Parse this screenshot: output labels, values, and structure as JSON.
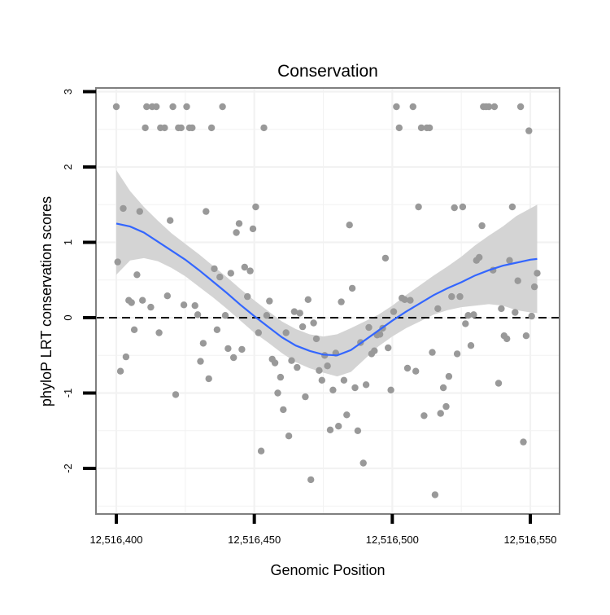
{
  "chart_data": {
    "type": "scatter",
    "title": "Conservation",
    "xlabel": "Genomic Position",
    "ylabel": "phyloP LRT conservation scores",
    "xlim": [
      12516394,
      12516555
    ],
    "ylim": [
      -2.65,
      3.1
    ],
    "x_ticks": [
      12516400,
      12516450,
      12516500,
      12516550
    ],
    "x_tick_labels": [
      "12,516,400",
      "12,516,450",
      "12,516,500",
      "12,516,550"
    ],
    "y_ticks": [
      -2,
      -1,
      0,
      1,
      2,
      3
    ],
    "y_tick_labels": [
      "-2",
      "-1",
      "0",
      "1",
      "2",
      "3"
    ],
    "grid": true,
    "reference_line": {
      "y": 0,
      "style": "dashed"
    },
    "colors": {
      "points": "#999999",
      "smooth": "#3366ff",
      "band": "#d4d4d4",
      "panel_border": "#7f7f7f",
      "grid": "#f2f2f2"
    },
    "series": [
      {
        "type": "scatter",
        "points": [
          [
            12516400,
            2.8
          ],
          [
            12516400.5,
            0.74
          ],
          [
            12516401.5,
            -0.71
          ],
          [
            12516402.5,
            1.45
          ],
          [
            12516403.5,
            -0.52
          ],
          [
            12516404.5,
            0.23
          ],
          [
            12516405.5,
            0.2
          ],
          [
            12516406.5,
            -0.16
          ],
          [
            12516407.5,
            0.57
          ],
          [
            12516408.5,
            1.41
          ],
          [
            12516409.5,
            0.23
          ],
          [
            12516410.5,
            2.52
          ],
          [
            12516411,
            2.8
          ],
          [
            12516412.5,
            0.14
          ],
          [
            12516413,
            2.8
          ],
          [
            12516414.5,
            2.8
          ],
          [
            12516415.5,
            -0.2
          ],
          [
            12516416,
            2.52
          ],
          [
            12516417.5,
            2.52
          ],
          [
            12516418.5,
            0.29
          ],
          [
            12516419.5,
            1.29
          ],
          [
            12516420.5,
            2.8
          ],
          [
            12516421.5,
            -1.02
          ],
          [
            12516422.5,
            2.52
          ],
          [
            12516423.5,
            2.52
          ],
          [
            12516424.5,
            0.17
          ],
          [
            12516425.5,
            2.8
          ],
          [
            12516426.5,
            2.52
          ],
          [
            12516427.5,
            2.52
          ],
          [
            12516428.5,
            0.16
          ],
          [
            12516429.5,
            0.04
          ],
          [
            12516430.5,
            -0.58
          ],
          [
            12516431.5,
            -0.34
          ],
          [
            12516432.5,
            1.41
          ],
          [
            12516433.5,
            -0.81
          ],
          [
            12516434.5,
            2.52
          ],
          [
            12516435.5,
            0.65
          ],
          [
            12516436.5,
            -0.16
          ],
          [
            12516437.5,
            0.54
          ],
          [
            12516438.5,
            2.8
          ],
          [
            12516439.5,
            0.03
          ],
          [
            12516440.5,
            -0.41
          ],
          [
            12516441.5,
            0.59
          ],
          [
            12516442.5,
            -0.53
          ],
          [
            12516443.5,
            1.13
          ],
          [
            12516444.5,
            1.25
          ],
          [
            12516445.5,
            -0.42
          ],
          [
            12516446.5,
            0.67
          ],
          [
            12516447.5,
            0.28
          ],
          [
            12516448.5,
            0.62
          ],
          [
            12516449.5,
            1.18
          ],
          [
            12516450.5,
            1.47
          ],
          [
            12516451.5,
            -0.2
          ],
          [
            12516452.5,
            -1.77
          ],
          [
            12516453.5,
            2.52
          ],
          [
            12516454.5,
            0.03
          ],
          [
            12516455.5,
            0.22
          ],
          [
            12516456.5,
            -0.55
          ],
          [
            12516457.5,
            -0.6
          ],
          [
            12516458.5,
            -1.0
          ],
          [
            12516459.5,
            -0.79
          ],
          [
            12516460.5,
            -1.22
          ],
          [
            12516461.5,
            -0.2
          ],
          [
            12516462.5,
            -1.57
          ],
          [
            12516463.5,
            -0.57
          ],
          [
            12516464.5,
            0.08
          ],
          [
            12516465.5,
            -0.66
          ],
          [
            12516466.5,
            0.06
          ],
          [
            12516467.5,
            -0.12
          ],
          [
            12516468.5,
            -1.05
          ],
          [
            12516469.5,
            0.24
          ],
          [
            12516470.5,
            -2.15
          ],
          [
            12516471.5,
            -0.07
          ],
          [
            12516472.5,
            -0.28
          ],
          [
            12516473.5,
            -0.7
          ],
          [
            12516474.5,
            -0.83
          ],
          [
            12516475.5,
            -0.5
          ],
          [
            12516476.5,
            -0.64
          ],
          [
            12516477.5,
            -1.49
          ],
          [
            12516478.5,
            -0.96
          ],
          [
            12516479.5,
            -0.47
          ],
          [
            12516480.5,
            -1.44
          ],
          [
            12516481.5,
            0.21
          ],
          [
            12516482.5,
            -0.83
          ],
          [
            12516483.5,
            -1.29
          ],
          [
            12516484.5,
            1.23
          ],
          [
            12516485.5,
            0.39
          ],
          [
            12516486.5,
            -0.93
          ],
          [
            12516487.5,
            -1.5
          ],
          [
            12516488.5,
            -0.33
          ],
          [
            12516489.5,
            -1.93
          ],
          [
            12516490.5,
            -0.89
          ],
          [
            12516491.5,
            -0.13
          ],
          [
            12516492.5,
            -0.48
          ],
          [
            12516493.5,
            -0.44
          ],
          [
            12516494.5,
            -0.23
          ],
          [
            12516495.5,
            -0.22
          ],
          [
            12516496.5,
            -0.14
          ],
          [
            12516497.5,
            0.79
          ],
          [
            12516498.5,
            -0.4
          ],
          [
            12516499.5,
            -0.96
          ],
          [
            12516500.5,
            0.08
          ],
          [
            12516501.5,
            2.8
          ],
          [
            12516502.5,
            2.52
          ],
          [
            12516503.5,
            0.26
          ],
          [
            12516504.5,
            0.24
          ],
          [
            12516505.5,
            -0.67
          ],
          [
            12516506.5,
            0.23
          ],
          [
            12516507.5,
            2.8
          ],
          [
            12516508.5,
            -0.71
          ],
          [
            12516509.5,
            1.47
          ],
          [
            12516510.5,
            2.52
          ],
          [
            12516511.5,
            -1.3
          ],
          [
            12516512.5,
            2.52
          ],
          [
            12516513.5,
            2.52
          ],
          [
            12516514.5,
            -0.46
          ],
          [
            12516515.5,
            -2.35
          ],
          [
            12516516.5,
            0.12
          ],
          [
            12516517.5,
            -1.27
          ],
          [
            12516518.5,
            -0.93
          ],
          [
            12516519.5,
            -1.18
          ],
          [
            12516520.5,
            -0.78
          ],
          [
            12516521.5,
            0.28
          ],
          [
            12516522.5,
            1.46
          ],
          [
            12516523.5,
            -0.48
          ],
          [
            12516524.5,
            0.28
          ],
          [
            12516525.5,
            1.47
          ],
          [
            12516526.5,
            -0.08
          ],
          [
            12516527.5,
            0.03
          ],
          [
            12516528.5,
            -0.37
          ],
          [
            12516529.5,
            0.04
          ],
          [
            12516530.5,
            0.76
          ],
          [
            12516531.5,
            0.8
          ],
          [
            12516532.5,
            1.22
          ],
          [
            12516533,
            2.8
          ],
          [
            12516534,
            2.8
          ],
          [
            12516535,
            2.8
          ],
          [
            12516536.5,
            0.63
          ],
          [
            12516537,
            2.8
          ],
          [
            12516538.5,
            -0.87
          ],
          [
            12516539.5,
            0.12
          ],
          [
            12516540.5,
            -0.24
          ],
          [
            12516541.5,
            -0.28
          ],
          [
            12516542.5,
            0.76
          ],
          [
            12516543.5,
            1.47
          ],
          [
            12516544.5,
            0.07
          ],
          [
            12516545.5,
            0.49
          ],
          [
            12516546.5,
            2.8
          ],
          [
            12516547.5,
            -1.65
          ],
          [
            12516548.5,
            -0.24
          ],
          [
            12516549.5,
            2.48
          ],
          [
            12516550.5,
            0.02
          ],
          [
            12516551.5,
            0.41
          ],
          [
            12516552.5,
            0.59
          ]
        ]
      },
      {
        "type": "line",
        "curve": [
          [
            12516400,
            1.25
          ],
          [
            12516405,
            1.21
          ],
          [
            12516410,
            1.13
          ],
          [
            12516415,
            1.01
          ],
          [
            12516420,
            0.89
          ],
          [
            12516425,
            0.77
          ],
          [
            12516430,
            0.63
          ],
          [
            12516435,
            0.48
          ],
          [
            12516440,
            0.33
          ],
          [
            12516445,
            0.17
          ],
          [
            12516450,
            0.02
          ],
          [
            12516455,
            -0.12
          ],
          [
            12516460,
            -0.26
          ],
          [
            12516465,
            -0.37
          ],
          [
            12516470,
            -0.44
          ],
          [
            12516475,
            -0.49
          ],
          [
            12516480,
            -0.5
          ],
          [
            12516485,
            -0.43
          ],
          [
            12516490,
            -0.3
          ],
          [
            12516495,
            -0.17
          ],
          [
            12516500,
            -0.04
          ],
          [
            12516505,
            0.08
          ],
          [
            12516510,
            0.19
          ],
          [
            12516515,
            0.3
          ],
          [
            12516520,
            0.39
          ],
          [
            12516525,
            0.47
          ],
          [
            12516530,
            0.56
          ],
          [
            12516535,
            0.63
          ],
          [
            12516540,
            0.69
          ],
          [
            12516545,
            0.73
          ],
          [
            12516550,
            0.77
          ],
          [
            12516552.5,
            0.78
          ]
        ],
        "band": [
          [
            12516400,
            0.57,
            1.96
          ],
          [
            12516405,
            0.76,
            1.68
          ],
          [
            12516410,
            0.79,
            1.47
          ],
          [
            12516415,
            0.75,
            1.29
          ],
          [
            12516420,
            0.66,
            1.12
          ],
          [
            12516425,
            0.55,
            0.98
          ],
          [
            12516430,
            0.41,
            0.84
          ],
          [
            12516435,
            0.27,
            0.69
          ],
          [
            12516440,
            0.12,
            0.54
          ],
          [
            12516445,
            -0.04,
            0.38
          ],
          [
            12516450,
            -0.2,
            0.23
          ],
          [
            12516455,
            -0.33,
            0.09
          ],
          [
            12516460,
            -0.47,
            -0.05
          ],
          [
            12516465,
            -0.59,
            -0.15
          ],
          [
            12516470,
            -0.67,
            -0.22
          ],
          [
            12516475,
            -0.73,
            -0.25
          ],
          [
            12516480,
            -0.78,
            -0.22
          ],
          [
            12516485,
            -0.72,
            -0.14
          ],
          [
            12516490,
            -0.55,
            -0.05
          ],
          [
            12516495,
            -0.38,
            0.04
          ],
          [
            12516500,
            -0.25,
            0.16
          ],
          [
            12516505,
            -0.14,
            0.3
          ],
          [
            12516510,
            -0.05,
            0.43
          ],
          [
            12516515,
            0.04,
            0.56
          ],
          [
            12516520,
            0.1,
            0.68
          ],
          [
            12516525,
            0.14,
            0.81
          ],
          [
            12516530,
            0.16,
            0.96
          ],
          [
            12516535,
            0.18,
            1.09
          ],
          [
            12516540,
            0.16,
            1.21
          ],
          [
            12516545,
            0.1,
            1.35
          ],
          [
            12516550,
            0.07,
            1.45
          ],
          [
            12516552.5,
            0.06,
            1.5
          ]
        ]
      }
    ]
  }
}
